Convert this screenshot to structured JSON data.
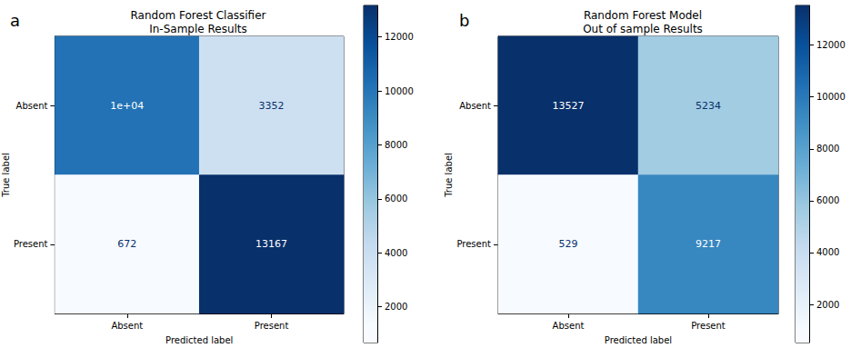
{
  "chart_data": [
    {
      "type": "heatmap",
      "panel_label": "a",
      "title": "Random Forest Classifier\nIn-Sample Results",
      "x_label": "Predicted label",
      "y_label": "True label",
      "x_categories": [
        "Absent",
        "Present"
      ],
      "y_categories": [
        "Absent",
        "Present"
      ],
      "cells": [
        [
          10000,
          3352
        ],
        [
          672,
          13167
        ]
      ],
      "value_labels": [
        [
          "1e+04",
          "3352"
        ],
        [
          "672",
          "13167"
        ]
      ],
      "data_labels": true,
      "colorbar": {
        "range": [
          672,
          13167
        ],
        "ticks": [
          2000,
          4000,
          6000,
          8000,
          10000,
          12000
        ]
      }
    },
    {
      "type": "heatmap",
      "panel_label": "b",
      "title": "Random Forest Model\nOut of sample Results",
      "x_label": "Predicted label",
      "y_label": "True label",
      "x_categories": [
        "Absent",
        "Present"
      ],
      "y_categories": [
        "Absent",
        "Present"
      ],
      "cells": [
        [
          13527,
          5234
        ],
        [
          529,
          9217
        ]
      ],
      "value_labels": [
        [
          "13527",
          "5234"
        ],
        [
          "529",
          "9217"
        ]
      ],
      "data_labels": true,
      "colorbar": {
        "range": [
          529,
          13527
        ],
        "ticks": [
          2000,
          4000,
          6000,
          8000,
          10000,
          12000
        ]
      }
    }
  ]
}
